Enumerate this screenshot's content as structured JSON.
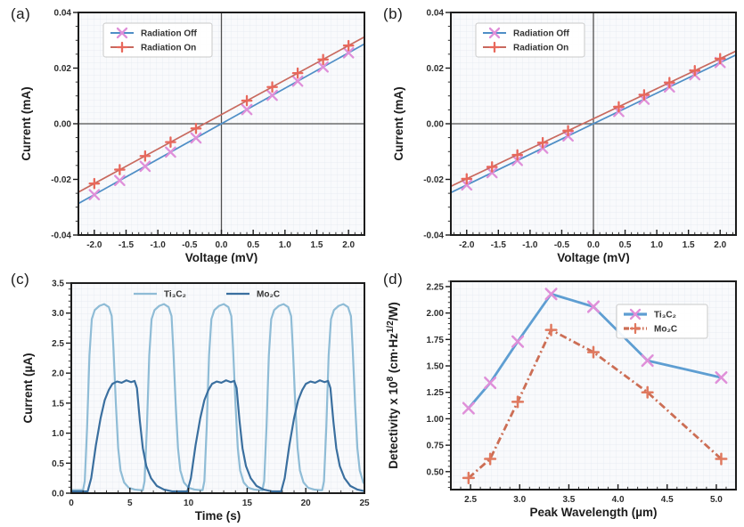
{
  "figure_title": "",
  "panel_letters": [
    "(a)",
    "(b)",
    "(c)",
    "(d)"
  ],
  "style_colors": {
    "spine": "#1c1c1c",
    "grid": "#e3e8f0",
    "plot_bg": "#f9fafc",
    "crosshair": "#505050",
    "tick_label": "#2d2d2d",
    "axis_label": "#1c1c1c",
    "legend_text": "#333333",
    "legend_border": "#c9c9c9"
  },
  "chart_data": [
    {
      "panel_label": "(a)",
      "type": "line",
      "xlabel": "Voltage (mV)",
      "ylabel": "Current (mA)",
      "xlim": [
        -2.25,
        2.25
      ],
      "ylim": [
        -0.04,
        0.04
      ],
      "xticks": {
        "values": [
          -2.0,
          -1.5,
          -1.0,
          -0.5,
          0.0,
          0.5,
          1.0,
          1.5,
          2.0
        ],
        "labels": [
          "-2.0",
          "-1.5",
          "-1.0",
          "-0.5",
          "0.0",
          "0.5",
          "1.0",
          "1.5",
          "2.0"
        ],
        "minor_step": 0.1
      },
      "yticks": {
        "values": [
          -0.04,
          -0.02,
          0.0,
          0.02,
          0.04
        ],
        "labels": [
          "-0.04",
          "-0.02",
          "0.00",
          "0.02",
          "0.04"
        ],
        "minor_step": 0.005
      },
      "grid": true,
      "crosshair": true,
      "legend_loc": "upper-left",
      "series": [
        {
          "name": "Radiation Off",
          "color": "#4e8ec6",
          "marker": "x",
          "marker_color": "#df8fd9",
          "line": {
            "slope": 0.01275,
            "intercept": 0.0
          },
          "points": [
            [
              -2.0,
              -0.0255
            ],
            [
              -1.6,
              -0.0204
            ],
            [
              -1.2,
              -0.0153
            ],
            [
              -0.8,
              -0.0102
            ],
            [
              -0.4,
              -0.0051
            ],
            [
              0.4,
              0.0051
            ],
            [
              0.8,
              0.0102
            ],
            [
              1.2,
              0.0153
            ],
            [
              1.6,
              0.0204
            ],
            [
              2.0,
              0.0255
            ]
          ]
        },
        {
          "name": "Radiation On",
          "color": "#c8695e",
          "marker": "+",
          "marker_color": "#e8685c",
          "line": {
            "slope": 0.0124,
            "intercept": 0.0033
          },
          "points": [
            [
              -2.0,
              -0.0215
            ],
            [
              -1.6,
              -0.0165
            ],
            [
              -1.2,
              -0.0116
            ],
            [
              -0.8,
              -0.0066
            ],
            [
              -0.4,
              -0.0017
            ],
            [
              0.4,
              0.0083
            ],
            [
              0.8,
              0.0132
            ],
            [
              1.2,
              0.0182
            ],
            [
              1.6,
              0.0231
            ],
            [
              2.0,
              0.0281
            ]
          ]
        }
      ]
    },
    {
      "panel_label": "(b)",
      "type": "line",
      "xlabel": "Voltage (mV)",
      "ylabel": "Current (mA)",
      "xlim": [
        -2.25,
        2.25
      ],
      "ylim": [
        -0.04,
        0.04
      ],
      "xticks": {
        "values": [
          -2.0,
          -1.5,
          -1.0,
          -0.5,
          0.0,
          0.5,
          1.0,
          1.5,
          2.0
        ],
        "labels": [
          "-2.0",
          "-1.5",
          "-1.0",
          "-0.5",
          "0.0",
          "0.5",
          "1.0",
          "1.5",
          "2.0"
        ],
        "minor_step": 0.1
      },
      "yticks": {
        "values": [
          -0.04,
          -0.02,
          0.0,
          0.02,
          0.04
        ],
        "labels": [
          "-0.04",
          "-0.02",
          "0.00",
          "0.02",
          "0.04"
        ],
        "minor_step": 0.005
      },
      "grid": true,
      "crosshair": true,
      "legend_loc": "upper-left",
      "series": [
        {
          "name": "Radiation Off",
          "color": "#4e8ec6",
          "marker": "x",
          "marker_color": "#df8fd9",
          "line": {
            "slope": 0.011,
            "intercept": 0.0
          },
          "points": [
            [
              -2.0,
              -0.022
            ],
            [
              -1.6,
              -0.0176
            ],
            [
              -1.2,
              -0.0132
            ],
            [
              -0.8,
              -0.0088
            ],
            [
              -0.4,
              -0.0044
            ],
            [
              0.4,
              0.0044
            ],
            [
              0.8,
              0.0088
            ],
            [
              1.2,
              0.0132
            ],
            [
              1.6,
              0.0176
            ],
            [
              2.0,
              0.022
            ]
          ]
        },
        {
          "name": "Radiation On",
          "color": "#c8695e",
          "marker": "+",
          "marker_color": "#e8685c",
          "line": {
            "slope": 0.0108,
            "intercept": 0.0018
          },
          "points": [
            [
              -2.0,
              -0.0198
            ],
            [
              -1.6,
              -0.0155
            ],
            [
              -1.2,
              -0.0112
            ],
            [
              -0.8,
              -0.0068
            ],
            [
              -0.4,
              -0.0025
            ],
            [
              0.4,
              0.0061
            ],
            [
              0.8,
              0.0104
            ],
            [
              1.2,
              0.0148
            ],
            [
              1.6,
              0.0191
            ],
            [
              2.0,
              0.0234
            ]
          ]
        }
      ]
    },
    {
      "panel_label": "(c)",
      "type": "line",
      "xlabel": "Time (s)",
      "ylabel": "Current (µA)",
      "xlim": [
        0,
        25
      ],
      "ylim": [
        0,
        3.5
      ],
      "xticks": {
        "values": [
          0,
          5,
          10,
          15,
          20,
          25
        ],
        "labels": [
          "0",
          "5",
          "10",
          "15",
          "20",
          "25"
        ],
        "minor_step": 1
      },
      "yticks": {
        "values": [
          0.0,
          0.5,
          1.0,
          1.5,
          2.0,
          2.5,
          3.0,
          3.5
        ],
        "labels": [
          "0.0",
          "0.5",
          "1.0",
          "1.5",
          "2.0",
          "2.5",
          "3.0",
          "3.5"
        ],
        "minor_step": 0.1
      },
      "grid": true,
      "crosshair": false,
      "legend_loc": "top-center",
      "series": [
        {
          "name": "Ti₃C₂",
          "color": "#8fbcd6",
          "marker": "",
          "pulse_train": {
            "baseline": 0.05,
            "starts": [
              1.0,
              6.1,
              11.2,
              16.3,
              21.4
            ],
            "shape": [
              [
                0,
                0.05
              ],
              [
                0.15,
                0.2
              ],
              [
                0.35,
                1.1
              ],
              [
                0.55,
                2.3
              ],
              [
                0.75,
                2.9
              ],
              [
                1.0,
                3.05
              ],
              [
                1.4,
                3.12
              ],
              [
                1.8,
                3.15
              ],
              [
                2.2,
                3.1
              ],
              [
                2.45,
                2.95
              ],
              [
                2.6,
                2.4
              ],
              [
                2.8,
                1.5
              ],
              [
                3.0,
                0.75
              ],
              [
                3.2,
                0.38
              ],
              [
                3.5,
                0.18
              ],
              [
                3.9,
                0.09
              ],
              [
                4.4,
                0.06
              ],
              [
                4.9,
                0.05
              ]
            ]
          }
        },
        {
          "name": "Mo₂C",
          "color": "#3a6f9f",
          "marker": "",
          "pulse_train": {
            "baseline": 0.03,
            "starts": [
              1.4,
              9.9,
              17.9
            ],
            "shape": [
              [
                0,
                0.03
              ],
              [
                0.3,
                0.25
              ],
              [
                0.7,
                0.8
              ],
              [
                1.1,
                1.25
              ],
              [
                1.45,
                1.55
              ],
              [
                1.8,
                1.72
              ],
              [
                2.1,
                1.82
              ],
              [
                2.5,
                1.86
              ],
              [
                2.9,
                1.84
              ],
              [
                3.3,
                1.88
              ],
              [
                3.7,
                1.85
              ],
              [
                4.0,
                1.87
              ],
              [
                4.2,
                1.75
              ],
              [
                4.45,
                1.2
              ],
              [
                4.7,
                0.75
              ],
              [
                5.0,
                0.45
              ],
              [
                5.4,
                0.25
              ],
              [
                5.9,
                0.12
              ],
              [
                6.5,
                0.06
              ],
              [
                7.2,
                0.03
              ]
            ]
          }
        }
      ]
    },
    {
      "panel_label": "(d)",
      "type": "line",
      "xlabel": "Peak Wavelength (µm)",
      "ylabel": "Detectivity x 10⁸ (cm·Hz¹ᐟ²/W)",
      "ylabel_parts": [
        {
          "t": "Detectivity x 10"
        },
        {
          "t": "8",
          "sup": 1
        },
        {
          "t": " (cm·Hz"
        },
        {
          "t": "1/2",
          "sup": 1
        },
        {
          "t": "/W)"
        }
      ],
      "xlim": [
        2.3,
        5.2
      ],
      "ylim": [
        0.33,
        2.3
      ],
      "xticks": {
        "values": [
          2.5,
          3.0,
          3.5,
          4.0,
          4.5,
          5.0
        ],
        "labels": [
          "2.5",
          "3.0",
          "3.5",
          "4.0",
          "4.5",
          "5.0"
        ],
        "minor_step": 0.1
      },
      "yticks": {
        "values": [
          0.5,
          0.75,
          1.0,
          1.25,
          1.5,
          1.75,
          2.0,
          2.25
        ],
        "labels": [
          "0.50",
          "0.75",
          "1.00",
          "1.25",
          "1.50",
          "1.75",
          "2.00",
          "2.25"
        ],
        "minor_step": 0.05
      },
      "grid": true,
      "crosshair": false,
      "legend_loc": "right-upper",
      "series": [
        {
          "name": "Ti₃C₂",
          "color": "#5e9ed2",
          "marker": "x",
          "marker_color": "#df8fd9",
          "points": [
            [
              2.48,
              1.1
            ],
            [
              2.7,
              1.34
            ],
            [
              2.98,
              1.73
            ],
            [
              3.32,
              2.18
            ],
            [
              3.75,
              2.06
            ],
            [
              4.3,
              1.55
            ],
            [
              5.05,
              1.39
            ]
          ]
        },
        {
          "name": "Mo₂C",
          "color": "#cc6e55",
          "marker": "+",
          "marker_color": "#e0795f",
          "dash": "8 3.5 2 3.5",
          "points": [
            [
              2.48,
              0.44
            ],
            [
              2.7,
              0.62
            ],
            [
              2.98,
              1.16
            ],
            [
              3.32,
              1.84
            ],
            [
              3.75,
              1.63
            ],
            [
              4.3,
              1.25
            ],
            [
              5.05,
              0.62
            ]
          ]
        }
      ]
    }
  ]
}
